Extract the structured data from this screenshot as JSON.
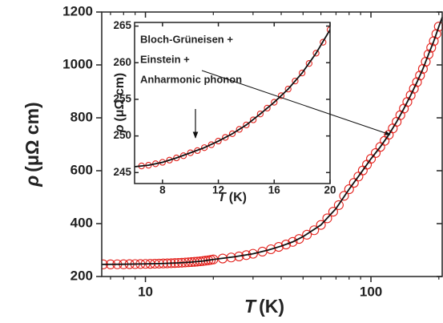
{
  "chart_data": [
    {
      "type": "scatter",
      "xlog": true,
      "xlabel_symbol": "T",
      "xlabel_unit": "(K)",
      "ylabel_symbol": "ρ",
      "ylabel_unit": "(μΩ cm)",
      "xlim": [
        6.4,
        207
      ],
      "xticks": [
        10,
        100
      ],
      "xminorticks": [
        7,
        8,
        9,
        20,
        30,
        40,
        50,
        60,
        70,
        80,
        90,
        200
      ],
      "ylim": [
        200,
        1200
      ],
      "yticks": [
        200,
        400,
        600,
        800,
        1000,
        1200
      ],
      "series": [
        {
          "style": "markers",
          "color": "#e3211c",
          "x": [
            6.5,
            7,
            7.5,
            8,
            8.5,
            9,
            9.5,
            10,
            10.5,
            11,
            11.5,
            12,
            12.5,
            13,
            13.5,
            14,
            14.5,
            15,
            15.5,
            16,
            16.5,
            17,
            17.5,
            18,
            18.5,
            19,
            19.5,
            20,
            22,
            24,
            26,
            28,
            30,
            33,
            36,
            39,
            42,
            45,
            48,
            52,
            56,
            60,
            64,
            68,
            72,
            76,
            80,
            84,
            88,
            92,
            96,
            100,
            105,
            110,
            115,
            120,
            125,
            130,
            135,
            140,
            145,
            150,
            155,
            160,
            165,
            170,
            175,
            180,
            185,
            190,
            195,
            200
          ],
          "values": [
            245.9,
            246.0,
            246.2,
            246.4,
            246.7,
            247.0,
            247.3,
            247.7,
            248.0,
            248.4,
            248.8,
            249.3,
            249.8,
            250.3,
            250.9,
            251.5,
            252.2,
            253.0,
            253.8,
            254.6,
            255.5,
            256.4,
            257.5,
            258.6,
            259.9,
            261.3,
            262.8,
            264.5,
            268,
            272,
            276,
            281,
            286,
            294,
            303,
            312,
            321,
            331,
            342,
            358,
            375,
            395,
            420,
            445,
            470,
            505,
            530,
            554,
            578,
            601,
            623,
            645,
            667,
            690,
            713,
            736,
            760,
            785,
            810,
            835,
            860,
            885,
            910,
            935,
            960,
            985,
            1012,
            1040,
            1065,
            1090,
            1117,
            1145
          ]
        },
        {
          "style": "line",
          "color": "#111111",
          "x": [
            6.4,
            8,
            10,
            12,
            14,
            16,
            18,
            20,
            25,
            30,
            35,
            40,
            45,
            50,
            60,
            70,
            80,
            90,
            100,
            110,
            120,
            130,
            140,
            150,
            160,
            170,
            180,
            190,
            200,
            207
          ],
          "values": [
            245.8,
            246.4,
            247.7,
            249.3,
            251.5,
            254.6,
            258.6,
            264.5,
            275,
            286,
            300,
            315,
            331,
            351,
            395,
            457,
            530,
            590,
            645,
            690,
            736,
            785,
            835,
            885,
            935,
            985,
            1040,
            1090,
            1145,
            1180
          ]
        }
      ]
    },
    {
      "type": "scatter",
      "xlog": false,
      "xlabel_symbol": "T",
      "xlabel_unit": "(K)",
      "ylabel_symbol": "ρ",
      "ylabel_unit": "(μΩ cm)",
      "annotation": [
        "Bloch-Grüneisen +",
        "Einstein +",
        "Anharmonic phonon"
      ],
      "xlim": [
        6,
        20
      ],
      "xticks": [
        8,
        12,
        16,
        20
      ],
      "ylim": [
        243.5,
        265.5
      ],
      "yticks": [
        245,
        250,
        255,
        260,
        265
      ],
      "series": [
        {
          "style": "markers",
          "color": "#e3211c",
          "x": [
            6.5,
            7,
            7.5,
            8,
            8.5,
            9,
            9.5,
            10,
            10.5,
            11,
            11.5,
            12,
            12.5,
            13,
            13.5,
            14,
            14.5,
            15,
            15.5,
            16,
            16.5,
            17,
            17.5,
            18,
            18.5,
            19,
            19.5,
            20
          ],
          "values": [
            245.9,
            246.0,
            246.2,
            246.4,
            246.7,
            247.0,
            247.3,
            247.7,
            248.0,
            248.4,
            248.8,
            249.3,
            249.8,
            250.3,
            250.9,
            251.5,
            252.2,
            253.0,
            253.8,
            254.6,
            255.5,
            256.4,
            257.5,
            258.6,
            259.9,
            261.3,
            262.8,
            264.5
          ]
        },
        {
          "style": "line",
          "color": "#111111",
          "x": [
            6,
            7,
            8,
            9,
            10,
            11,
            12,
            13,
            14,
            15,
            16,
            17,
            18,
            19,
            20
          ],
          "values": [
            245.8,
            246.0,
            246.4,
            247.0,
            247.7,
            248.4,
            249.3,
            250.3,
            251.5,
            253.0,
            254.6,
            256.4,
            258.6,
            261.3,
            264.5
          ]
        }
      ]
    }
  ]
}
